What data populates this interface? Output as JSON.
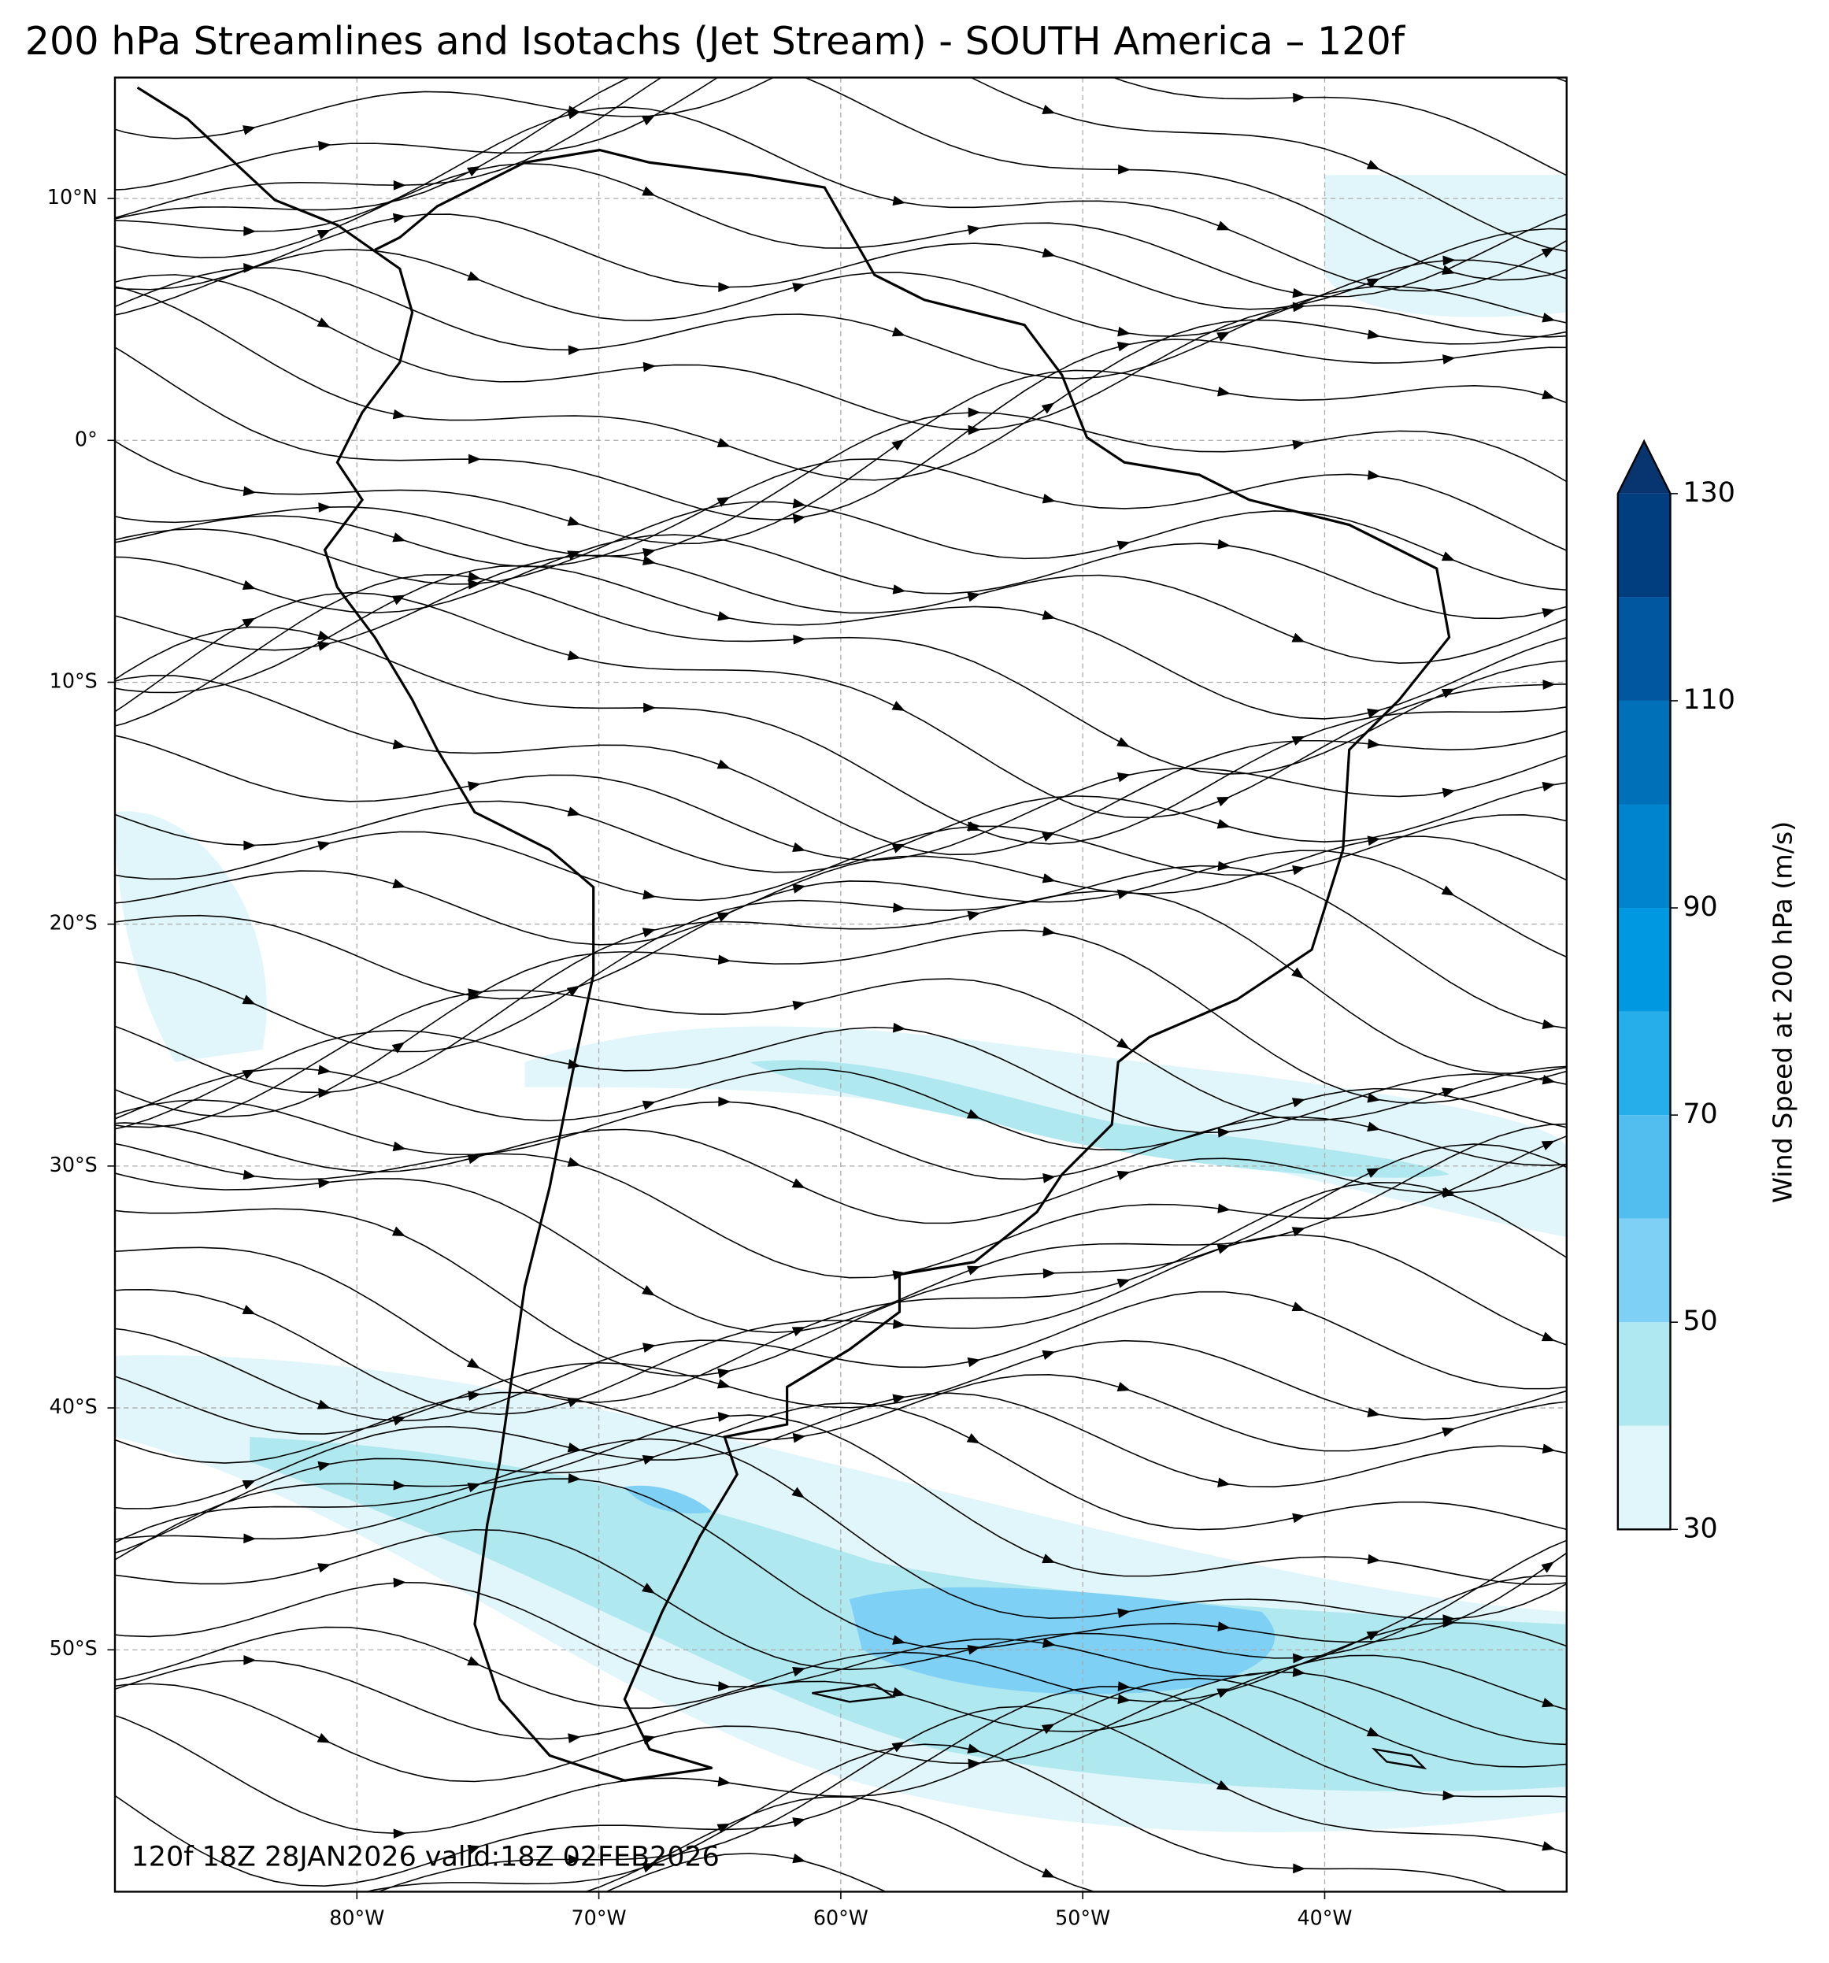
{
  "chart_data": {
    "type": "map",
    "title": "200 hPa Streamlines and Isotachs (Jet Stream) - SOUTH America – 120f",
    "annotation": "120f 18Z 28JAN2026 valid:18Z 02FEB2026",
    "xlim": [
      -90,
      -30
    ],
    "ylim": [
      -60,
      15
    ],
    "xticks": [
      {
        "value": -80,
        "label": "80°W"
      },
      {
        "value": -70,
        "label": "70°W"
      },
      {
        "value": -60,
        "label": "60°W"
      },
      {
        "value": -50,
        "label": "50°W"
      },
      {
        "value": -40,
        "label": "40°W"
      }
    ],
    "yticks": [
      {
        "value": 10,
        "label": "10°N"
      },
      {
        "value": 0,
        "label": "0°"
      },
      {
        "value": -10,
        "label": "10°S"
      },
      {
        "value": -20,
        "label": "20°S"
      },
      {
        "value": -30,
        "label": "30°S"
      },
      {
        "value": -40,
        "label": "40°S"
      },
      {
        "value": -50,
        "label": "50°S"
      }
    ],
    "grid": true,
    "colorbar": {
      "label": "Wind Speed at 200 hPa (m/s)",
      "levels": [
        30,
        40,
        50,
        60,
        70,
        80,
        90,
        100,
        110,
        120,
        130
      ],
      "colors": [
        "#e0f6fa",
        "#b0e8ef",
        "#7fd0f5",
        "#52bef0",
        "#25aeea",
        "#0098e0",
        "#0084cc",
        "#0070b8",
        "#0058a0",
        "#003e80"
      ],
      "extend_color": "#083470",
      "ticks": [
        30,
        50,
        70,
        90,
        110,
        130
      ]
    }
  }
}
